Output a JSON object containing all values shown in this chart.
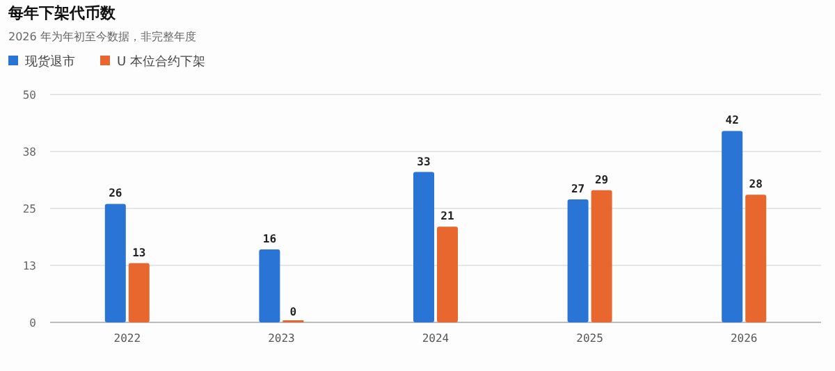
{
  "chart_data": {
    "type": "bar",
    "title": "每年下架代币数",
    "subtitle": "2026 年为年初至今数据，非完整年度",
    "categories": [
      "2022",
      "2023",
      "2024",
      "2025",
      "2026"
    ],
    "series": [
      {
        "name": "现货退市",
        "color": "#2a74d6",
        "values": [
          26,
          16,
          33,
          27,
          42
        ]
      },
      {
        "name": "U 本位合约下架",
        "color": "#e8672f",
        "values": [
          13,
          0,
          21,
          29,
          28
        ]
      }
    ],
    "ylim": [
      0,
      50
    ],
    "yticks": [
      0,
      {
        "value": 12.5,
        "label": "13"
      },
      25,
      {
        "value": 37.5,
        "label": "38"
      },
      50
    ],
    "grid": "y",
    "legend": "top left",
    "data_labels": true
  }
}
